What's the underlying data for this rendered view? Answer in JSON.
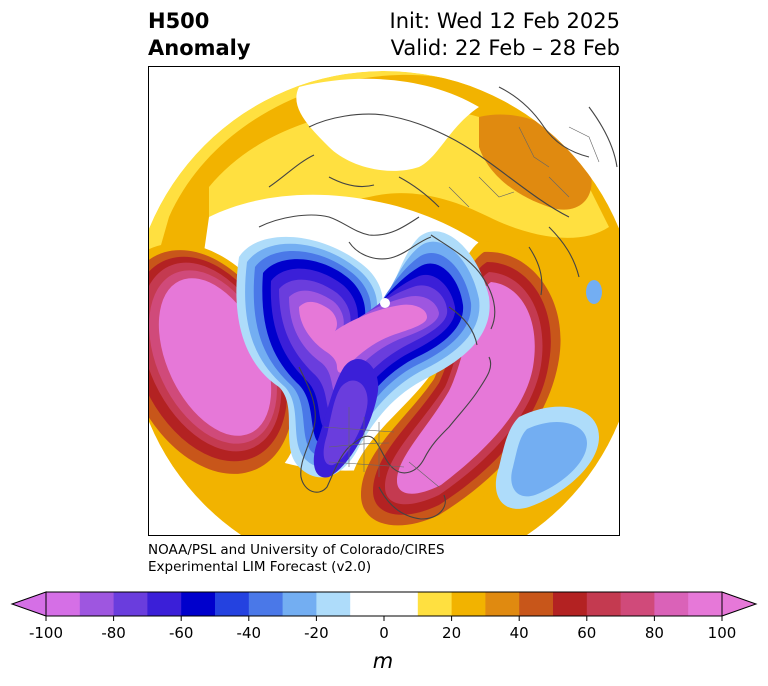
{
  "title": {
    "left_line1": "H500",
    "left_line2": "Anomaly",
    "right_line1": "Init: Wed 12 Feb 2025",
    "right_line2": "Valid: 22 Feb – 28 Feb"
  },
  "credit": {
    "line1": "NOAA/PSL and University of Colorado/CIRES",
    "line2": "Experimental LIM Forecast (v2.0)"
  },
  "colorbar": {
    "ticks": [
      "-100",
      "-80",
      "-60",
      "-40",
      "-20",
      "0",
      "20",
      "40",
      "60",
      "80",
      "100"
    ],
    "unit": "m",
    "levels": [
      {
        "range": [
          -100,
          -90
        ],
        "color": "#d56fe6"
      },
      {
        "range": [
          -90,
          -80
        ],
        "color": "#9e56e0"
      },
      {
        "range": [
          -80,
          -70
        ],
        "color": "#6a3ddd"
      },
      {
        "range": [
          -70,
          -60
        ],
        "color": "#3b1fd8"
      },
      {
        "range": [
          -60,
          -50
        ],
        "color": "#0000cc"
      },
      {
        "range": [
          -50,
          -40
        ],
        "color": "#2442e0"
      },
      {
        "range": [
          -40,
          -30
        ],
        "color": "#4a78e8"
      },
      {
        "range": [
          -30,
          -20
        ],
        "color": "#73aef2"
      },
      {
        "range": [
          -20,
          -10
        ],
        "color": "#aedcfa"
      },
      {
        "range": [
          -10,
          10
        ],
        "color": "#ffffff"
      },
      {
        "range": [
          10,
          20
        ],
        "color": "#ffe040"
      },
      {
        "range": [
          20,
          30
        ],
        "color": "#f2b300"
      },
      {
        "range": [
          30,
          40
        ],
        "color": "#e08a10"
      },
      {
        "range": [
          40,
          50
        ],
        "color": "#c8561a"
      },
      {
        "range": [
          50,
          60
        ],
        "color": "#b32222"
      },
      {
        "range": [
          60,
          70
        ],
        "color": "#c43a50"
      },
      {
        "range": [
          70,
          80
        ],
        "color": "#d04a7a"
      },
      {
        "range": [
          80,
          90
        ],
        "color": "#da62b8"
      },
      {
        "range": [
          90,
          100
        ],
        "color": "#e678d8"
      }
    ],
    "extend_low_color": "#d56fe6",
    "extend_high_color": "#e678d8"
  },
  "map": {
    "projection": "north polar stereographic",
    "land_outline_color": "#444444",
    "anomaly_features": [
      {
        "name": "trough",
        "region": "northeast Pacific / Alaska",
        "sign": "negative"
      },
      {
        "name": "trough",
        "region": "Canada / western and central US",
        "sign": "negative"
      },
      {
        "name": "ridge",
        "region": "North Pacific",
        "sign": "positive"
      },
      {
        "name": "ridge",
        "region": "eastern US / western Atlantic",
        "sign": "positive"
      },
      {
        "name": "ridge",
        "region": "northern Eurasia",
        "sign": "positive"
      },
      {
        "name": "trough",
        "region": "central North Atlantic",
        "sign": "negative"
      }
    ]
  }
}
